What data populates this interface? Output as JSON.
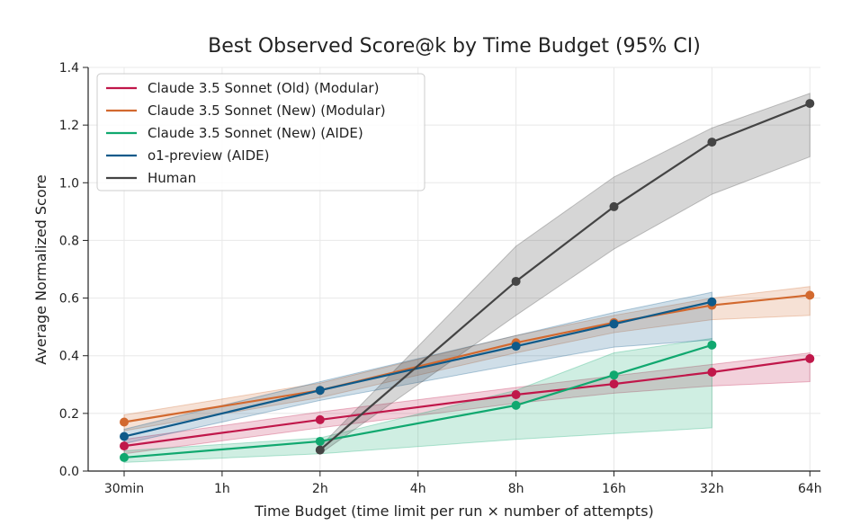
{
  "chart_data": {
    "type": "line",
    "title": "Best Observed Score@k by Time Budget (95% CI)",
    "xlabel": "Time Budget (time limit per run × number of attempts)",
    "ylabel": "Average Normalized Score",
    "categories": [
      "30min",
      "1h",
      "2h",
      "4h",
      "8h",
      "16h",
      "32h",
      "64h"
    ],
    "ylim": [
      0,
      1.4
    ],
    "yticks": [
      "0.0",
      "0.2",
      "0.4",
      "0.6",
      "0.8",
      "1.0",
      "1.2",
      "1.4"
    ],
    "grid": true,
    "legend_position": "top-left",
    "series": [
      {
        "name": "Claude 3.5 Sonnet (Old) (Modular)",
        "color": "#c0174a",
        "x": [
          0,
          2,
          4,
          5,
          6,
          7
        ],
        "values": [
          0.087,
          0.178,
          0.265,
          0.302,
          0.343,
          0.39
        ],
        "lower": [
          0.06,
          0.15,
          0.235,
          0.27,
          0.295,
          0.31
        ],
        "upper": [
          0.11,
          0.205,
          0.29,
          0.33,
          0.37,
          0.41
        ]
      },
      {
        "name": "Claude 3.5 Sonnet (New) (Modular)",
        "color": "#d2692f",
        "x": [
          0,
          2,
          4,
          5,
          6,
          7
        ],
        "values": [
          0.17,
          0.28,
          0.445,
          0.515,
          0.575,
          0.61
        ],
        "lower": [
          0.14,
          0.255,
          0.41,
          0.48,
          0.525,
          0.54
        ],
        "upper": [
          0.195,
          0.305,
          0.47,
          0.54,
          0.6,
          0.64
        ]
      },
      {
        "name": "Claude 3.5 Sonnet (New) (AIDE)",
        "color": "#10a86f",
        "x": [
          0,
          2,
          4,
          5,
          6
        ],
        "values": [
          0.047,
          0.103,
          0.228,
          0.333,
          0.437
        ],
        "lower": [
          0.03,
          0.06,
          0.11,
          0.13,
          0.15
        ],
        "upper": [
          0.07,
          0.115,
          0.28,
          0.41,
          0.46
        ]
      },
      {
        "name": "o1-preview (AIDE)",
        "color": "#0e5a8a",
        "x": [
          0,
          2,
          4,
          5,
          6
        ],
        "values": [
          0.12,
          0.28,
          0.433,
          0.51,
          0.587
        ],
        "lower": [
          0.095,
          0.245,
          0.37,
          0.43,
          0.455
        ],
        "upper": [
          0.145,
          0.31,
          0.47,
          0.55,
          0.62
        ]
      },
      {
        "name": "Human",
        "color": "#444444",
        "x": [
          2,
          4,
          5,
          6,
          7
        ],
        "values": [
          0.073,
          0.658,
          0.917,
          1.141,
          1.275
        ],
        "lower": [
          0.06,
          0.54,
          0.77,
          0.96,
          1.09
        ],
        "upper": [
          0.085,
          0.78,
          1.02,
          1.19,
          1.31
        ]
      }
    ]
  }
}
